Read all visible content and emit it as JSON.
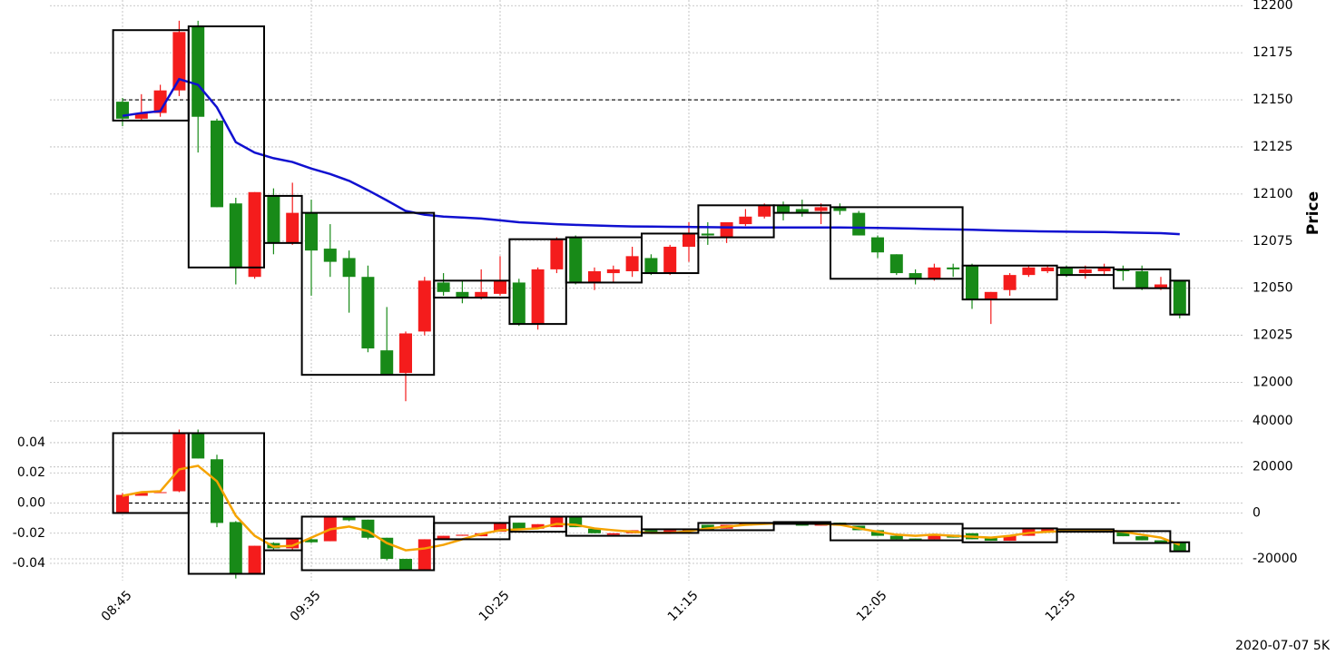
{
  "chart_data": [
    {
      "type": "candlestick",
      "ylabel": "Price",
      "ylim": [
        11980,
        12203
      ],
      "yticks": [
        12000,
        12025,
        12050,
        12075,
        12100,
        12125,
        12150,
        12175,
        12200
      ],
      "grid": true,
      "up_color": "#f41c1c",
      "down_color": "#188a18",
      "box_color": "#000000",
      "hline": 12150,
      "open": [
        12149,
        12140,
        12143,
        12155,
        12189,
        12139,
        12095,
        12056,
        12099,
        12074,
        12090,
        12071,
        12066,
        12056,
        12017,
        12005,
        12027,
        12053,
        12048,
        12045,
        12047,
        12053,
        12031,
        12060,
        12077,
        12053,
        12058,
        12059,
        12066,
        12058,
        12072,
        12079,
        12077,
        12084,
        12088,
        12094,
        12092,
        12091,
        12093,
        12090,
        12077,
        12068,
        12058,
        12055,
        12061,
        12062,
        12044,
        12049,
        12057,
        12059,
        12061,
        12058,
        12059,
        12060,
        12059,
        12050,
        12054
      ],
      "high": [
        12151,
        12153,
        12158,
        12192,
        12192,
        12140,
        12098,
        12101,
        12103,
        12106,
        12097,
        12084,
        12070,
        12062,
        12040,
        12027,
        12056,
        12058,
        12054,
        12060,
        12067,
        12055,
        12061,
        12077,
        12078,
        12061,
        12062,
        12072,
        12068,
        12073,
        12085,
        12085,
        12085,
        12092,
        12095,
        12096,
        12097,
        12095,
        12095,
        12091,
        12078,
        12068,
        12060,
        12063,
        12063,
        12063,
        12048,
        12058,
        12062,
        12062,
        12062,
        12062,
        12063,
        12062,
        12062,
        12056,
        12054
      ],
      "low": [
        12136,
        12139,
        12141,
        12152,
        12122,
        12093,
        12052,
        12055,
        12068,
        12073,
        12046,
        12056,
        12037,
        12016,
        12004,
        11990,
        12025,
        12046,
        12042,
        12044,
        12046,
        12030,
        12028,
        12058,
        12052,
        12049,
        12053,
        12056,
        12057,
        12057,
        12064,
        12073,
        12074,
        12083,
        12087,
        12086,
        12088,
        12084,
        12089,
        12078,
        12066,
        12057,
        12052,
        12054,
        12056,
        12039,
        12031,
        12046,
        12056,
        12058,
        12056,
        12055,
        12057,
        12054,
        12049,
        12049,
        12034
      ],
      "close": [
        12140,
        12143,
        12155,
        12186,
        12141,
        12093,
        12061,
        12101,
        12074,
        12090,
        12070,
        12064,
        12056,
        12018,
        12004,
        12026,
        12054,
        12048,
        12045,
        12048,
        12054,
        12031,
        12060,
        12076,
        12053,
        12059,
        12060,
        12067,
        12058,
        12072,
        12079,
        12078,
        12085,
        12088,
        12094,
        12090,
        12090,
        12093,
        12091,
        12078,
        12069,
        12058,
        12055,
        12061,
        12060,
        12044,
        12048,
        12057,
        12061,
        12061,
        12057,
        12060,
        12061,
        12059,
        12050,
        12052,
        12036
      ],
      "lines": [
        {
          "color": "#1010d0",
          "values": [
            12141.5,
            12143,
            12144,
            12161,
            12158,
            12146,
            12127.5,
            12122,
            12119,
            12117,
            12113.5,
            12110.6,
            12107,
            12102,
            12096.6,
            12091,
            12089,
            12088,
            12087.5,
            12087,
            12086,
            12085,
            12084.5,
            12084,
            12083.6,
            12083.3,
            12083,
            12082.8,
            12082.7,
            12082.6,
            12082.5,
            12082.4,
            12082.3,
            12082.2,
            12082.2,
            12082.2,
            12082.2,
            12082.2,
            12082.2,
            12082.1,
            12082,
            12081.8,
            12081.6,
            12081.4,
            12081.2,
            12081,
            12080.7,
            12080.5,
            12080.3,
            12080.1,
            12080,
            12079.9,
            12079.8,
            12079.6,
            12079.4,
            12079.2,
            12078.7
          ]
        }
      ],
      "boxes": [
        {
          "start": 0,
          "end": 3,
          "low": 12139,
          "high": 12187
        },
        {
          "start": 4,
          "end": 7,
          "low": 12061,
          "high": 12189
        },
        {
          "start": 8,
          "end": 9,
          "low": 12074,
          "high": 12099
        },
        {
          "start": 10,
          "end": 16,
          "low": 12004,
          "high": 12090
        },
        {
          "start": 17,
          "end": 20,
          "low": 12045,
          "high": 12054
        },
        {
          "start": 21,
          "end": 23,
          "low": 12031,
          "high": 12076
        },
        {
          "start": 24,
          "end": 27,
          "low": 12053,
          "high": 12077
        },
        {
          "start": 28,
          "end": 30,
          "low": 12058,
          "high": 12079
        },
        {
          "start": 31,
          "end": 34,
          "low": 12077,
          "high": 12094
        },
        {
          "start": 35,
          "end": 37,
          "low": 12090,
          "high": 12094
        },
        {
          "start": 38,
          "end": 44,
          "low": 12055,
          "high": 12093
        },
        {
          "start": 45,
          "end": 49,
          "low": 12044,
          "high": 12062
        },
        {
          "start": 50,
          "end": 52,
          "low": 12057,
          "high": 12061
        },
        {
          "start": 53,
          "end": 55,
          "low": 12050,
          "high": 12060
        },
        {
          "start": 56,
          "end": 56,
          "low": 12036,
          "high": 12054
        }
      ]
    },
    {
      "type": "candlestick",
      "ylim": [
        -0.0514,
        0.055
      ],
      "yticks": [
        -0.04,
        -0.02,
        {
          "value": 0,
          "label": "0.00"
        },
        0.02,
        0.04
      ],
      "y2lim": [
        -29470,
        40400
      ],
      "y2ticks": [
        -20000,
        0,
        20000,
        40000
      ],
      "grid": true,
      "up_color": "#f41c1c",
      "down_color": "#188a18",
      "box_color": "#000000",
      "hline": 0,
      "categories": [
        "08:45",
        null,
        null,
        null,
        null,
        null,
        null,
        null,
        null,
        null,
        "09:35",
        null,
        null,
        null,
        null,
        null,
        null,
        null,
        null,
        null,
        "10:25",
        null,
        null,
        null,
        null,
        null,
        null,
        null,
        null,
        null,
        "11:15",
        null,
        null,
        null,
        null,
        null,
        null,
        null,
        null,
        null,
        "12:05",
        null,
        null,
        null,
        null,
        null,
        null,
        null,
        null,
        null,
        "12:55",
        null,
        null,
        null,
        null,
        null,
        null
      ],
      "open": [
        -0.0066,
        0.0048,
        0.0066,
        0.0078,
        0.0457,
        0.029,
        -0.0126,
        -0.0469,
        -0.0265,
        -0.03,
        -0.024,
        -0.0253,
        -0.009,
        -0.011,
        -0.023,
        -0.037,
        -0.044,
        -0.024,
        -0.0217,
        -0.022,
        -0.019,
        -0.013,
        -0.017,
        -0.016,
        -0.009,
        -0.017,
        -0.021,
        -0.02,
        -0.018,
        -0.02,
        -0.0186,
        -0.0144,
        -0.017,
        -0.015,
        -0.0138,
        -0.0126,
        -0.0138,
        -0.015,
        -0.013,
        -0.015,
        -0.018,
        -0.0217,
        -0.0235,
        -0.024,
        -0.021,
        -0.02,
        -0.023,
        -0.025,
        -0.0217,
        -0.019,
        -0.0174,
        -0.019,
        -0.0186,
        -0.019,
        -0.022,
        -0.0247,
        -0.026
      ],
      "high": [
        0.0066,
        0.0066,
        0.0072,
        0.0487,
        0.0487,
        0.032,
        -0.012,
        -0.0283,
        -0.026,
        -0.024,
        -0.0235,
        -0.009,
        -0.009,
        -0.011,
        -0.023,
        -0.037,
        -0.024,
        -0.0217,
        -0.021,
        -0.02,
        -0.013,
        -0.013,
        -0.014,
        -0.009,
        -0.009,
        -0.017,
        -0.02,
        -0.018,
        -0.018,
        -0.018,
        -0.017,
        -0.0144,
        -0.0144,
        -0.013,
        -0.0126,
        -0.0126,
        -0.0138,
        -0.013,
        -0.013,
        -0.015,
        -0.018,
        -0.0217,
        -0.0235,
        -0.021,
        -0.021,
        -0.02,
        -0.023,
        -0.0217,
        -0.0174,
        -0.0174,
        -0.0174,
        -0.018,
        -0.0174,
        -0.019,
        -0.022,
        -0.0247,
        -0.026
      ],
      "low": [
        -0.0066,
        0.0048,
        0.0066,
        0.0072,
        0.0295,
        -0.016,
        -0.05,
        -0.0475,
        -0.031,
        -0.031,
        -0.0265,
        -0.0253,
        -0.012,
        -0.024,
        -0.038,
        -0.045,
        -0.045,
        -0.024,
        -0.0217,
        -0.022,
        -0.019,
        -0.017,
        -0.017,
        -0.016,
        -0.016,
        -0.02,
        -0.021,
        -0.02,
        -0.02,
        -0.02,
        -0.0186,
        -0.0174,
        -0.017,
        -0.015,
        -0.0138,
        -0.0138,
        -0.015,
        -0.015,
        -0.015,
        -0.018,
        -0.0217,
        -0.024,
        -0.024,
        -0.024,
        -0.0229,
        -0.024,
        -0.025,
        -0.025,
        -0.0217,
        -0.019,
        -0.019,
        -0.019,
        -0.0186,
        -0.022,
        -0.0247,
        -0.026,
        -0.032
      ],
      "close": [
        0.0054,
        0.0066,
        0.0072,
        0.0457,
        0.0295,
        -0.0132,
        -0.0469,
        -0.0283,
        -0.03,
        -0.024,
        -0.026,
        -0.009,
        -0.0114,
        -0.023,
        -0.037,
        -0.044,
        -0.024,
        -0.0217,
        -0.021,
        -0.02,
        -0.013,
        -0.017,
        -0.014,
        -0.009,
        -0.016,
        -0.02,
        -0.02,
        -0.018,
        -0.02,
        -0.018,
        -0.017,
        -0.0174,
        -0.0144,
        -0.013,
        -0.0126,
        -0.0138,
        -0.015,
        -0.013,
        -0.015,
        -0.018,
        -0.0217,
        -0.024,
        -0.024,
        -0.021,
        -0.0229,
        -0.024,
        -0.025,
        -0.0217,
        -0.0174,
        -0.0174,
        -0.019,
        -0.018,
        -0.0174,
        -0.022,
        -0.0247,
        -0.026,
        -0.032
      ],
      "lines": [
        {
          "color": "#f5a300",
          "values": [
            0.0048,
            0.0072,
            0.0078,
            0.0223,
            0.0247,
            0.0144,
            -0.0084,
            -0.0217,
            -0.0289,
            -0.0283,
            -0.0229,
            -0.0174,
            -0.0156,
            -0.0186,
            -0.0265,
            -0.0313,
            -0.0301,
            -0.0277,
            -0.024,
            -0.0205,
            -0.018,
            -0.0174,
            -0.0168,
            -0.0138,
            -0.0144,
            -0.0168,
            -0.018,
            -0.019,
            -0.0198,
            -0.0198,
            -0.0186,
            -0.0168,
            -0.0156,
            -0.0144,
            -0.0138,
            -0.0132,
            -0.0132,
            -0.0138,
            -0.0144,
            -0.0168,
            -0.019,
            -0.021,
            -0.0217,
            -0.021,
            -0.0217,
            -0.0223,
            -0.0229,
            -0.0217,
            -0.0198,
            -0.019,
            -0.0186,
            -0.018,
            -0.018,
            -0.019,
            -0.021,
            -0.0229,
            -0.0277
          ]
        }
      ],
      "boxes": [
        {
          "start": 0,
          "end": 3,
          "low": -0.0066,
          "high": 0.0463
        },
        {
          "start": 4,
          "end": 7,
          "low": -0.0469,
          "high": 0.0463
        },
        {
          "start": 8,
          "end": 9,
          "low": -0.0313,
          "high": -0.0235
        },
        {
          "start": 10,
          "end": 16,
          "low": -0.0445,
          "high": -0.009
        },
        {
          "start": 17,
          "end": 20,
          "low": -0.024,
          "high": -0.0132
        },
        {
          "start": 21,
          "end": 23,
          "low": -0.019,
          "high": -0.009
        },
        {
          "start": 24,
          "end": 27,
          "low": -0.0217,
          "high": -0.009
        },
        {
          "start": 28,
          "end": 30,
          "low": -0.0198,
          "high": -0.0174
        },
        {
          "start": 31,
          "end": 34,
          "low": -0.018,
          "high": -0.0132
        },
        {
          "start": 35,
          "end": 37,
          "low": -0.0138,
          "high": -0.0126
        },
        {
          "start": 38,
          "end": 44,
          "low": -0.0247,
          "high": -0.0138
        },
        {
          "start": 45,
          "end": 49,
          "low": -0.026,
          "high": -0.0168
        },
        {
          "start": 50,
          "end": 52,
          "low": -0.019,
          "high": -0.0174
        },
        {
          "start": 53,
          "end": 55,
          "low": -0.0265,
          "high": -0.0186
        },
        {
          "start": 56,
          "end": 56,
          "low": -0.032,
          "high": -0.026
        }
      ]
    }
  ],
  "footer": "2020-07-07 5K"
}
